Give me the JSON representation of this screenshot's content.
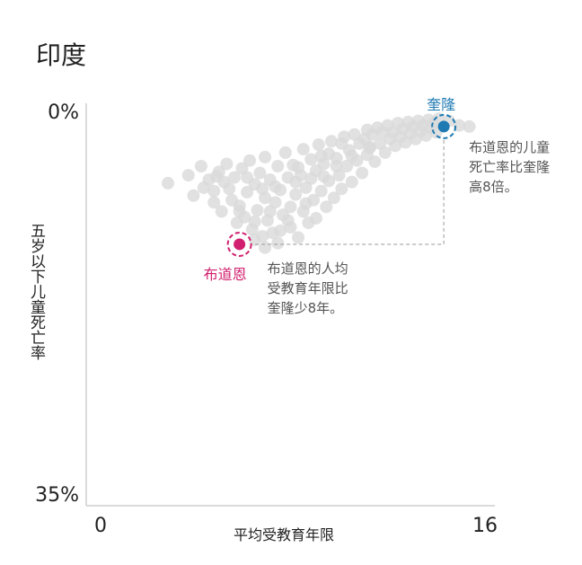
{
  "chart_data": {
    "type": "scatter",
    "title": "印度",
    "xlabel": "平均受教育年限",
    "ylabel": "五岁以下儿童死亡率",
    "x_ticks": [
      "0",
      "16"
    ],
    "y_ticks": [
      "0%",
      "35%"
    ],
    "xlim": [
      0,
      16
    ],
    "ylim": [
      0,
      35
    ],
    "y_inverted": true,
    "grid": false,
    "highlights": [
      {
        "name": "奎隆",
        "x": 14.0,
        "y": 1.5,
        "color": "#1f7ab3",
        "annotation": "布道恩的儿童\n死亡率比奎隆\n高8倍。"
      },
      {
        "name": "布道恩",
        "x": 6.0,
        "y": 11.9,
        "color": "#d1206f",
        "annotation": "布道恩的人均\n受教育年限比\n奎隆少8年。"
      }
    ],
    "background_color": "#d9d9d9",
    "background_points": [
      [
        3.2,
        6.5
      ],
      [
        4.0,
        5.8
      ],
      [
        4.2,
        7.6
      ],
      [
        4.5,
        5.0
      ],
      [
        4.8,
        6.2
      ],
      [
        5.0,
        8.2
      ],
      [
        5.2,
        5.5
      ],
      [
        5.3,
        9.0
      ],
      [
        5.5,
        4.8
      ],
      [
        5.6,
        7.0
      ],
      [
        5.8,
        6.0
      ],
      [
        5.9,
        10.0
      ],
      [
        6.0,
        8.5
      ],
      [
        6.1,
        5.2
      ],
      [
        6.2,
        9.5
      ],
      [
        6.3,
        7.3
      ],
      [
        6.4,
        4.5
      ],
      [
        6.5,
        10.6
      ],
      [
        6.6,
        6.6
      ],
      [
        6.7,
        8.9
      ],
      [
        6.8,
        5.6
      ],
      [
        6.9,
        11.2
      ],
      [
        7.0,
        7.8
      ],
      [
        7.0,
        4.2
      ],
      [
        7.1,
        9.8
      ],
      [
        7.2,
        6.2
      ],
      [
        7.3,
        10.9
      ],
      [
        7.4,
        8.2
      ],
      [
        7.5,
        5.0
      ],
      [
        7.5,
        11.8
      ],
      [
        7.6,
        7.1
      ],
      [
        7.7,
        9.3
      ],
      [
        7.8,
        3.8
      ],
      [
        7.9,
        6.0
      ],
      [
        8.0,
        8.6
      ],
      [
        8.0,
        10.4
      ],
      [
        8.1,
        4.9
      ],
      [
        8.2,
        7.5
      ],
      [
        8.3,
        11.3
      ],
      [
        8.4,
        5.8
      ],
      [
        8.5,
        9.0
      ],
      [
        8.5,
        3.5
      ],
      [
        8.6,
        6.9
      ],
      [
        8.7,
        10.0
      ],
      [
        8.8,
        4.4
      ],
      [
        8.9,
        8.0
      ],
      [
        9.0,
        5.4
      ],
      [
        9.0,
        9.6
      ],
      [
        9.1,
        3.1
      ],
      [
        9.2,
        7.2
      ],
      [
        9.3,
        4.8
      ],
      [
        9.4,
        8.6
      ],
      [
        9.5,
        3.9
      ],
      [
        9.5,
        6.3
      ],
      [
        9.6,
        2.8
      ],
      [
        9.7,
        7.8
      ],
      [
        9.8,
        4.3
      ],
      [
        9.9,
        5.8
      ],
      [
        10.0,
        3.0
      ],
      [
        10.0,
        7.0
      ],
      [
        10.1,
        2.4
      ],
      [
        10.2,
        5.0
      ],
      [
        10.3,
        3.6
      ],
      [
        10.4,
        6.4
      ],
      [
        10.5,
        2.2
      ],
      [
        10.6,
        4.5
      ],
      [
        10.7,
        3.0
      ],
      [
        10.8,
        5.6
      ],
      [
        10.9,
        2.6
      ],
      [
        11.0,
        4.0
      ],
      [
        11.0,
        1.8
      ],
      [
        11.1,
        3.3
      ],
      [
        11.2,
        2.2
      ],
      [
        11.3,
        4.6
      ],
      [
        11.4,
        1.6
      ],
      [
        11.5,
        3.0
      ],
      [
        11.6,
        2.0
      ],
      [
        11.7,
        3.8
      ],
      [
        11.8,
        1.4
      ],
      [
        11.9,
        2.6
      ],
      [
        12.0,
        2.0
      ],
      [
        12.1,
        3.2
      ],
      [
        12.2,
        1.2
      ],
      [
        12.3,
        2.4
      ],
      [
        12.4,
        1.7
      ],
      [
        12.5,
        2.9
      ],
      [
        12.6,
        1.1
      ],
      [
        12.7,
        2.1
      ],
      [
        12.8,
        1.5
      ],
      [
        12.9,
        2.6
      ],
      [
        13.0,
        1.0
      ],
      [
        13.1,
        1.9
      ],
      [
        13.2,
        1.4
      ],
      [
        13.3,
        2.3
      ],
      [
        13.4,
        0.9
      ],
      [
        13.5,
        1.6
      ],
      [
        13.6,
        1.2
      ],
      [
        13.7,
        2.0
      ],
      [
        13.8,
        0.8
      ],
      [
        14.2,
        1.0
      ],
      [
        14.6,
        1.4
      ],
      [
        15.0,
        1.5
      ],
      [
        5.0,
        7.2
      ],
      [
        5.7,
        8.0
      ],
      [
        6.3,
        6.0
      ],
      [
        6.9,
        7.0
      ],
      [
        7.4,
        6.8
      ],
      [
        8.2,
        6.4
      ],
      [
        8.8,
        6.1
      ],
      [
        9.3,
        5.9
      ],
      [
        6.0,
        9.0
      ],
      [
        6.6,
        9.9
      ],
      [
        7.2,
        9.0
      ],
      [
        7.9,
        9.8
      ],
      [
        8.6,
        8.3
      ],
      [
        9.8,
        5.0
      ],
      [
        10.4,
        4.1
      ],
      [
        11.1,
        3.4
      ],
      [
        6.6,
        11.5
      ],
      [
        7.0,
        12.2
      ],
      [
        7.6,
        10.7
      ],
      [
        5.4,
        6.4
      ],
      [
        4.6,
        6.9
      ],
      [
        5.1,
        5.9
      ],
      [
        8.3,
        5.1
      ],
      [
        9.2,
        4.1
      ]
    ]
  }
}
